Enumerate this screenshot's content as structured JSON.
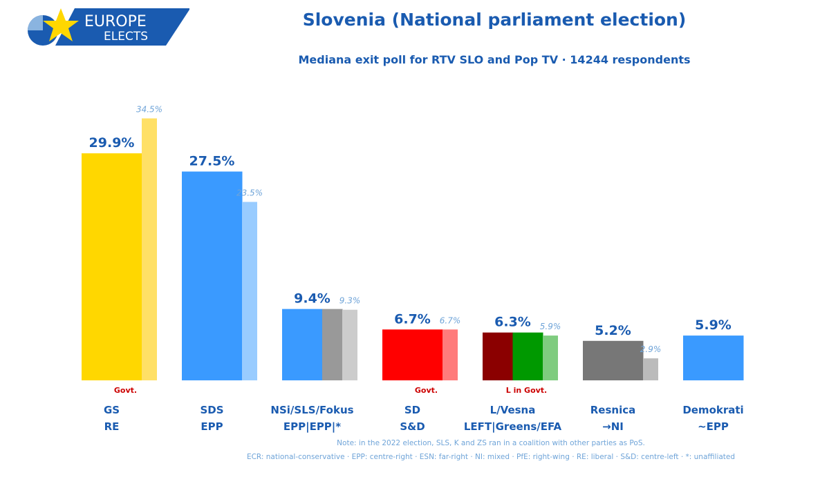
{
  "logo": {
    "line1": "EUROPE",
    "line2": "ELECTS"
  },
  "title": "Slovenia (National parliament election)",
  "subtitle": "Mediana exit poll for RTV SLO and Pop TV · 14244 respondents",
  "notes": {
    "line1": "Note: in the 2022 election, SLS, K and ZS ran in a coalition with other parties as PoS.",
    "line2": "ECR: national-conservative · EPP: centre-right · ESN: far-right · NI: mixed · PfE: right-wing · RE: liberal · S&D: centre-left · *: unaffiliated"
  },
  "colors": {
    "title": "#1a5bb0",
    "label": "#1a5bb0",
    "govt": "#cc0000",
    "prev_label": "#6fa4d8"
  },
  "chart_data": {
    "type": "bar",
    "categories": [
      "GS",
      "SDS",
      "NSi/SLS/Fokus",
      "SD",
      "L/Vesna",
      "Resnica",
      "Demokrati"
    ],
    "affiliations": [
      "RE",
      "EPP",
      "EPP|EPP|*",
      "S&D",
      "LEFT|Greens/EFA",
      "→NI",
      "~EPP"
    ],
    "status": [
      "Govt.",
      "",
      "",
      "Govt.",
      "L in Govt.",
      "",
      ""
    ],
    "series": [
      {
        "name": "",
        "values": [
          29.9,
          27.5,
          9.4,
          6.7,
          6.3,
          5.2,
          5.9
        ],
        "labels": [
          "29.9%",
          "27.5%",
          "9.4%",
          "6.7%",
          "6.3%",
          "5.2%",
          "5.9%"
        ],
        "colors": [
          [
            "#ffd700"
          ],
          [
            "#3a9aff"
          ],
          [
            "#3a9aff",
            "#3a9aff",
            "#999999"
          ],
          [
            "#ff0000"
          ],
          [
            "#8b0000",
            "#009900"
          ],
          [
            "#777777"
          ],
          [
            "#3a9aff"
          ]
        ]
      },
      {
        "name": "",
        "values": [
          34.5,
          23.5,
          9.3,
          6.7,
          5.9,
          2.9,
          null
        ],
        "labels": [
          "34.5%",
          "23.5%",
          "9.3%",
          "6.7%",
          "5.9%",
          "2.9%",
          ""
        ],
        "colors": [
          "#ffe066",
          "#99ccff",
          "#cccccc",
          "#ff7b7b",
          "#7fcc7f",
          "#bbbbbb",
          ""
        ]
      }
    ],
    "ylim": [
      0,
      36
    ],
    "grid": false,
    "legend": "none"
  }
}
